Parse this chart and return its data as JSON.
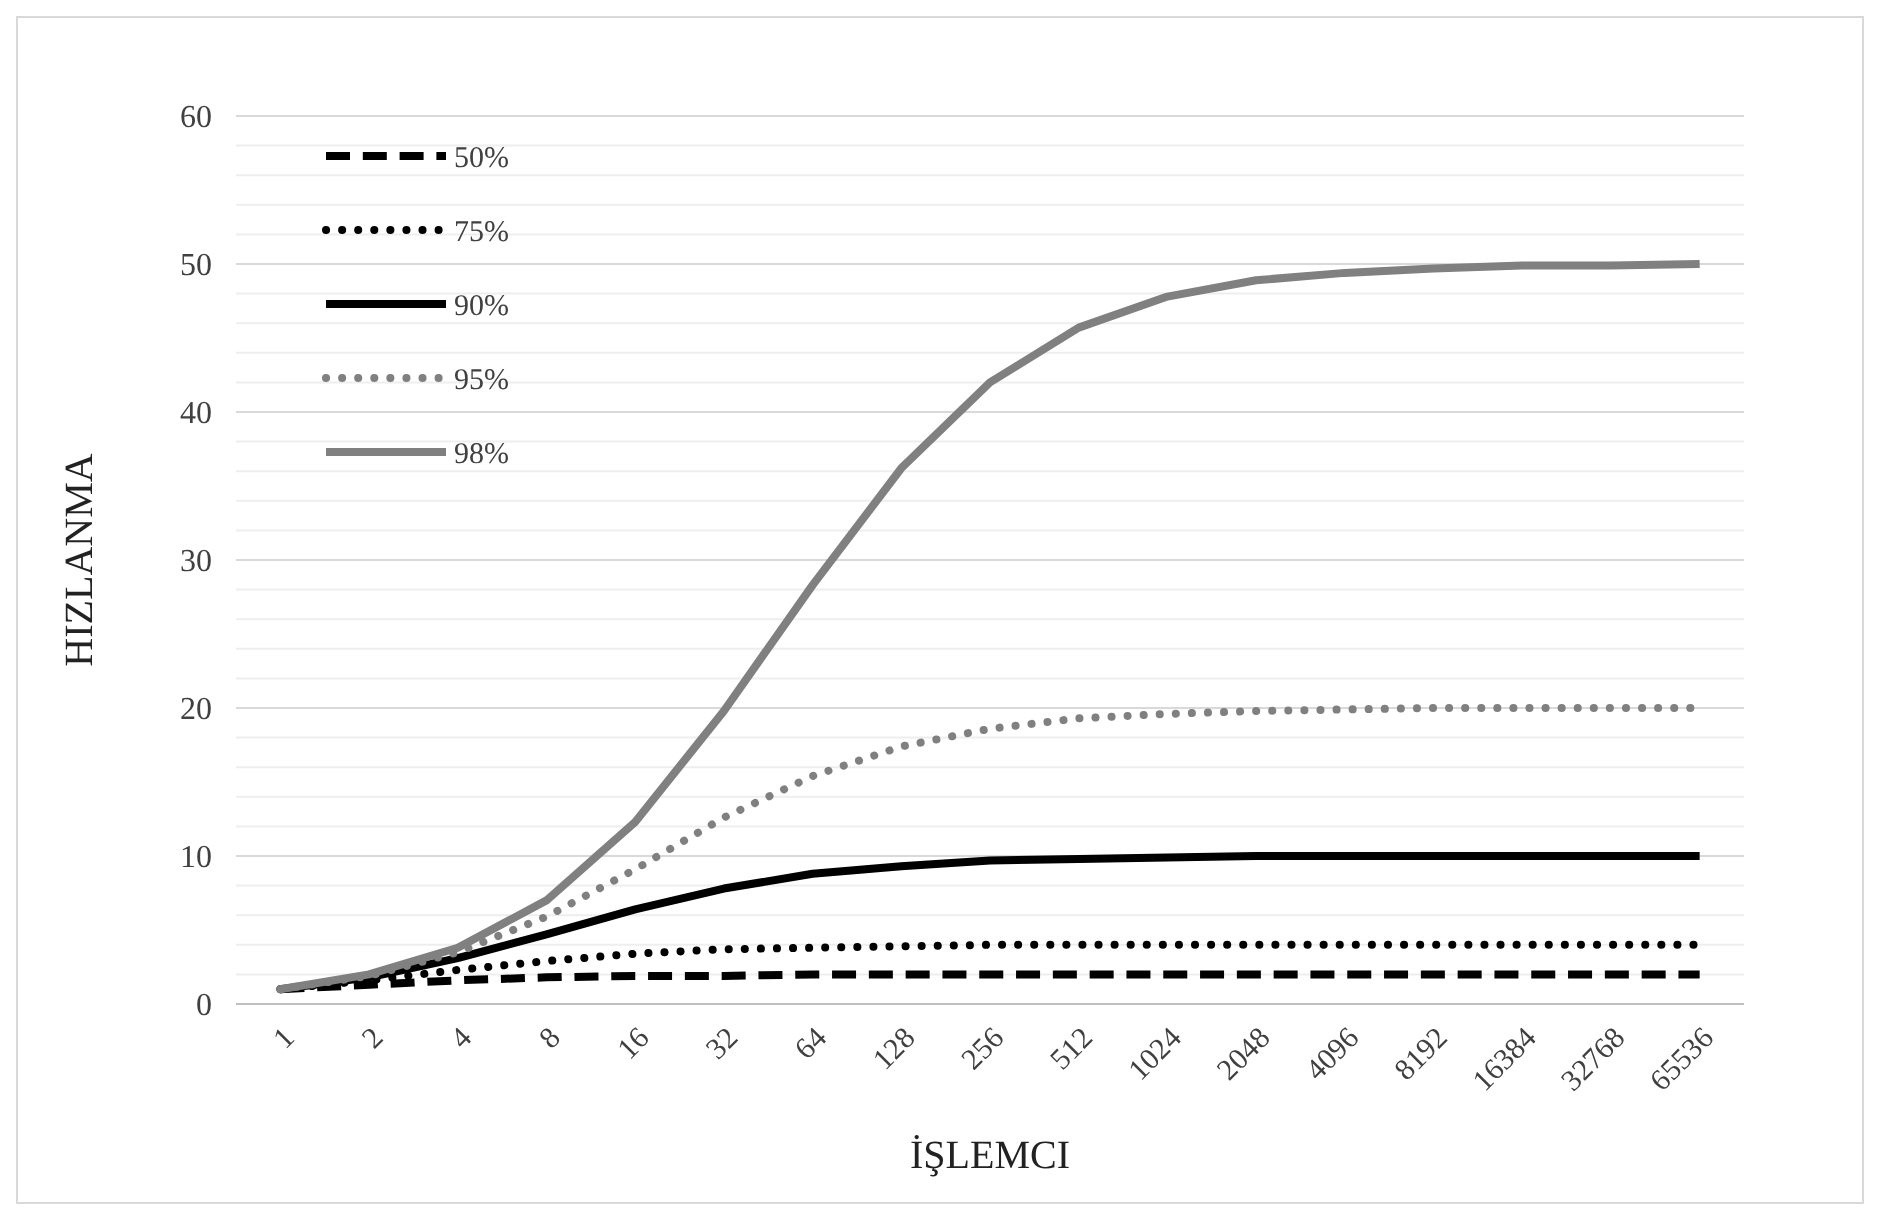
{
  "chart_data": {
    "type": "line",
    "xlabel": "İŞLEMCI",
    "ylabel": "HIZLANMA",
    "categories": [
      "1",
      "2",
      "4",
      "8",
      "16",
      "32",
      "64",
      "128",
      "256",
      "512",
      "1024",
      "2048",
      "4096",
      "8192",
      "16384",
      "32768",
      "65536"
    ],
    "ylim": [
      0,
      60
    ],
    "yticks": [
      0,
      {
        "value": 2,
        "label": null
      },
      {
        "value": 4,
        "label": null
      },
      {
        "value": 6,
        "label": null
      },
      {
        "value": 8,
        "label": null
      },
      10,
      {
        "value": 12,
        "label": null
      },
      {
        "value": 14,
        "label": null
      },
      {
        "value": 16,
        "label": null
      },
      {
        "value": 18,
        "label": null
      },
      20,
      {
        "value": 22,
        "label": null
      },
      {
        "value": 24,
        "label": null
      },
      {
        "value": 26,
        "label": null
      },
      {
        "value": 28,
        "label": null
      },
      30,
      {
        "value": 32,
        "label": null
      },
      {
        "value": 34,
        "label": null
      },
      {
        "value": 36,
        "label": null
      },
      {
        "value": 38,
        "label": null
      },
      40,
      {
        "value": 42,
        "label": null
      },
      {
        "value": 44,
        "label": null
      },
      {
        "value": 46,
        "label": null
      },
      {
        "value": 48,
        "label": null
      },
      50,
      {
        "value": 52,
        "label": null
      },
      {
        "value": 54,
        "label": null
      },
      {
        "value": 56,
        "label": null
      },
      {
        "value": 58,
        "label": null
      },
      60
    ],
    "grid": "y",
    "legend": "top left",
    "marker": "none",
    "series": [
      {
        "name": "50%",
        "color": "#000000",
        "line_style": "dashed",
        "values": [
          1,
          1.3,
          1.6,
          1.8,
          1.9,
          1.9,
          2,
          2,
          2,
          2,
          2,
          2,
          2,
          2,
          2,
          2,
          2
        ]
      },
      {
        "name": "75%",
        "color": "#000000",
        "line_style": "dotted",
        "values": [
          1,
          1.6,
          2.3,
          2.9,
          3.4,
          3.7,
          3.8,
          3.9,
          4,
          4,
          4,
          4,
          4,
          4,
          4,
          4,
          4
        ]
      },
      {
        "name": "90%",
        "color": "#000000",
        "line_style": "solid",
        "values": [
          1,
          1.8,
          3.1,
          4.7,
          6.4,
          7.8,
          8.8,
          9.3,
          9.7,
          9.8,
          9.9,
          10,
          10,
          10,
          10,
          10,
          10
        ]
      },
      {
        "name": "95%",
        "color": "#808080",
        "line_style": "dotted",
        "values": [
          1,
          1.9,
          3.5,
          5.9,
          9.1,
          12.6,
          15.4,
          17.4,
          18.6,
          19.3,
          19.6,
          19.8,
          19.9,
          20,
          20,
          20,
          20
        ]
      },
      {
        "name": "98%",
        "color": "#808080",
        "line_style": "solid",
        "values": [
          1,
          2,
          3.8,
          7,
          12.3,
          19.8,
          28.3,
          36.2,
          42,
          45.7,
          47.8,
          48.9,
          49.4,
          49.7,
          49.9,
          49.9,
          50
        ]
      }
    ]
  }
}
